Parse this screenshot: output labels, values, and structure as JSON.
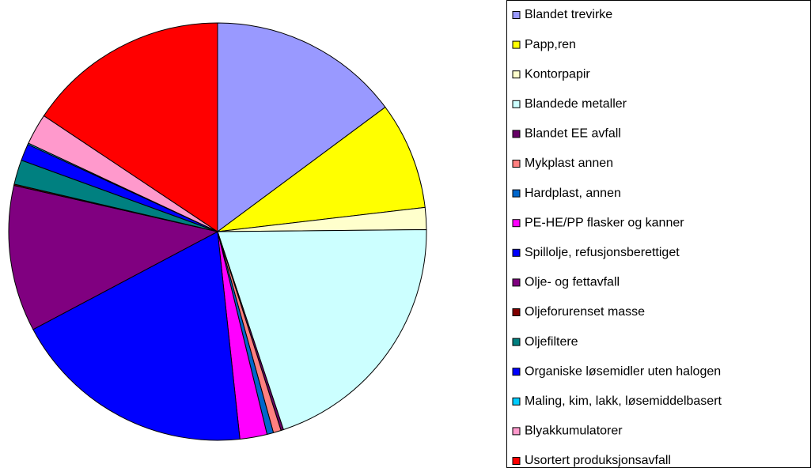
{
  "chart_data": {
    "type": "pie",
    "categories": [
      "Blandet trevirke",
      "Papp,ren",
      "Kontorpapir",
      "Blandede metaller",
      "Blandet EE avfall",
      "Mykplast annen",
      "Hardplast, annen",
      "PE-HE/PP flasker og kanner",
      "Spillolje, refusjonsberettiget",
      "Olje- og fettavfall",
      "Oljeforurenset masse",
      "Oljefiltere",
      "Organiske løsemidler uten halogen",
      "Maling, kim, lakk, løsemiddelbasert",
      "Blyakkumulatorer",
      "Usortert produksjonsavfall"
    ],
    "values": [
      14.8,
      8.3,
      1.7,
      20,
      0.2,
      0.6,
      0.5,
      2.1,
      18.9,
      11.3,
      0.1,
      1.9,
      1.3,
      0.1,
      2.4,
      15.6
    ],
    "colors": [
      "#9999FF",
      "#FFFF00",
      "#FFFFCC",
      "#CCFFFF",
      "#660066",
      "#FF8080",
      "#0066CC",
      "#FF00FF",
      "#0000FF",
      "#800080",
      "#800000",
      "#008080",
      "#0000FF",
      "#00CCFF",
      "#FF99CC",
      "#FF0000"
    ],
    "legend": "right"
  }
}
